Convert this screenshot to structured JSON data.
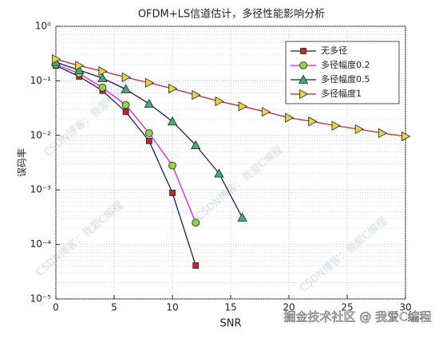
{
  "chart_data": {
    "type": "line",
    "title": "OFDM+LS信道估计，多径性能影响分析",
    "x_label": "SNR",
    "y_label": "误码率",
    "log_y": true,
    "grid": true,
    "minor_grid": true,
    "legend_position": "upper right",
    "xlim": [
      0,
      30
    ],
    "xticks": [
      0,
      5,
      10,
      15,
      20,
      25,
      30
    ],
    "ylim": [
      1e-05,
      1
    ],
    "yticks": [
      {
        "value": 1e-05,
        "label": "10⁻⁵"
      },
      {
        "value": 0.0001,
        "label": "10⁻⁴"
      },
      {
        "value": 0.001,
        "label": "10⁻³"
      },
      {
        "value": 0.01,
        "label": "10⁻²"
      },
      {
        "value": 0.1,
        "label": "10⁻¹"
      },
      {
        "value": 1,
        "label": "10⁰"
      }
    ],
    "series": [
      {
        "name": "无多径",
        "color": "#1a1a6e",
        "marker": "square",
        "marker_color": "#c0282d",
        "x": [
          0,
          2,
          4,
          6,
          8,
          10,
          12
        ],
        "values": [
          0.19,
          0.12,
          0.066,
          0.027,
          0.0079,
          0.00088,
          4.1e-05
        ]
      },
      {
        "name": "多径幅度0.2",
        "color": "#e61ec8",
        "marker": "circle",
        "marker_color": "#8ed443",
        "x": [
          0,
          2,
          4,
          6,
          8,
          10,
          12
        ],
        "values": [
          0.2,
          0.137,
          0.075,
          0.036,
          0.011,
          0.0028,
          0.00025
        ]
      },
      {
        "name": "多径幅度0.5",
        "color": "#1a1a6e",
        "marker": "triangle-up",
        "marker_color": "#3cb371",
        "x": [
          0,
          2,
          4,
          6,
          8,
          10,
          12,
          14,
          16
        ],
        "values": [
          0.22,
          0.157,
          0.112,
          0.07,
          0.038,
          0.018,
          0.0066,
          0.002,
          0.00031
        ]
      },
      {
        "name": "多径幅度1",
        "color": "#b8272b",
        "marker": "triangle-right",
        "marker_color": "#e8d44a",
        "x": [
          0,
          2,
          4,
          6,
          8,
          10,
          12,
          14,
          16,
          18,
          20,
          22,
          24,
          26,
          28,
          30
        ],
        "values": [
          0.25,
          0.19,
          0.15,
          0.116,
          0.092,
          0.072,
          0.055,
          0.042,
          0.034,
          0.027,
          0.021,
          0.018,
          0.015,
          0.013,
          0.011,
          0.0096
        ]
      }
    ],
    "watermark": "掘金技术社区 @ 我爱C编程",
    "watermark_diagonal": "CSDN博客：我爱C编程"
  }
}
